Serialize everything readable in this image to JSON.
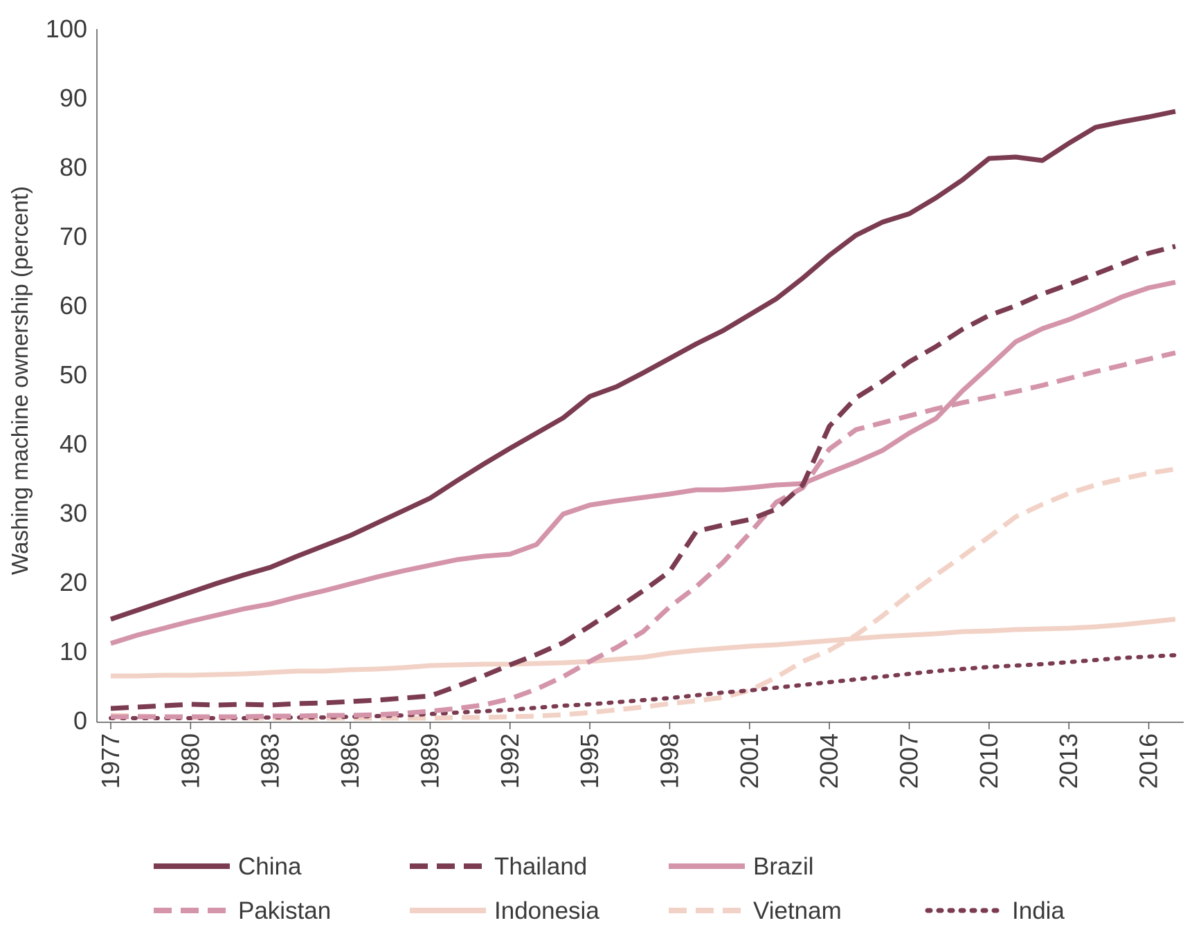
{
  "chart_data": {
    "type": "line",
    "title": "",
    "xlabel": "",
    "ylabel": "Washing machine ownership (percent)",
    "ylim": [
      0,
      100
    ],
    "yticks": [
      0,
      10,
      20,
      30,
      40,
      50,
      60,
      70,
      80,
      90,
      100
    ],
    "xlim": [
      1977,
      2017
    ],
    "xtick_labels": [
      "1977",
      "1980",
      "1983",
      "1986",
      "1989",
      "1992",
      "1995",
      "1998",
      "2001",
      "2004",
      "2007",
      "2010",
      "2013",
      "2016"
    ],
    "x": [
      1977,
      1978,
      1979,
      1980,
      1981,
      1982,
      1983,
      1984,
      1985,
      1986,
      1987,
      1988,
      1989,
      1990,
      1991,
      1992,
      1993,
      1994,
      1995,
      1996,
      1997,
      1998,
      1999,
      2000,
      2001,
      2002,
      2003,
      2004,
      2005,
      2006,
      2007,
      2008,
      2009,
      2010,
      2011,
      2012,
      2013,
      2014,
      2015,
      2016,
      2017
    ],
    "legend_position": "bottom",
    "series": [
      {
        "name": "China",
        "color": "#7b3b50",
        "style": "solid",
        "values": [
          14.7,
          16.0,
          17.3,
          18.6,
          19.9,
          21.1,
          22.2,
          23.8,
          25.3,
          26.8,
          28.6,
          30.4,
          32.2,
          34.7,
          37.1,
          39.4,
          41.6,
          43.8,
          46.9,
          48.3,
          50.3,
          52.4,
          54.5,
          56.4,
          58.7,
          61.0,
          64.0,
          67.3,
          70.2,
          72.1,
          73.3,
          75.6,
          78.2,
          81.3,
          81.5,
          81.0,
          83.5,
          85.8,
          86.6,
          87.3,
          88.1
        ]
      },
      {
        "name": "Thailand",
        "color": "#7b3b50",
        "style": "dashed",
        "values": [
          1.8,
          2.0,
          2.2,
          2.4,
          2.3,
          2.4,
          2.3,
          2.5,
          2.6,
          2.8,
          3.0,
          3.3,
          3.6,
          5.0,
          6.5,
          8.1,
          9.6,
          11.3,
          13.7,
          16.2,
          18.8,
          21.6,
          27.4,
          28.3,
          29.1,
          30.6,
          34.1,
          42.6,
          46.7,
          49.1,
          51.9,
          54.1,
          56.6,
          58.6,
          60.0,
          61.7,
          63.1,
          64.6,
          66.1,
          67.6,
          68.6
        ]
      },
      {
        "name": "Brazil",
        "color": "#d494a9",
        "style": "solid",
        "values": [
          11.2,
          12.4,
          13.4,
          14.4,
          15.3,
          16.2,
          16.9,
          17.9,
          18.8,
          19.8,
          20.8,
          21.7,
          22.5,
          23.3,
          23.8,
          24.1,
          25.5,
          29.9,
          31.2,
          31.8,
          32.3,
          32.8,
          33.4,
          33.4,
          33.7,
          34.1,
          34.3,
          35.9,
          37.4,
          39.1,
          41.6,
          43.7,
          47.7,
          51.2,
          54.8,
          56.7,
          58.0,
          59.6,
          61.3,
          62.6,
          63.4
        ]
      },
      {
        "name": "Pakistan",
        "color": "#d494a9",
        "style": "dashed",
        "values": [
          0.6,
          0.6,
          0.6,
          0.6,
          0.6,
          0.6,
          0.7,
          0.7,
          0.8,
          0.8,
          0.9,
          1.1,
          1.4,
          1.8,
          2.3,
          3.2,
          4.6,
          6.4,
          8.6,
          10.6,
          12.9,
          16.5,
          19.4,
          22.9,
          27.1,
          31.6,
          33.7,
          39.3,
          42.1,
          43.1,
          44.1,
          45.1,
          46.0,
          46.8,
          47.6,
          48.5,
          49.5,
          50.5,
          51.4,
          52.3,
          53.2
        ]
      },
      {
        "name": "Indonesia",
        "color": "#f2d2c6",
        "style": "solid",
        "values": [
          6.5,
          6.5,
          6.6,
          6.6,
          6.7,
          6.8,
          7.0,
          7.2,
          7.2,
          7.4,
          7.5,
          7.7,
          8.0,
          8.1,
          8.2,
          8.2,
          8.3,
          8.4,
          8.6,
          8.9,
          9.2,
          9.8,
          10.2,
          10.5,
          10.8,
          11.0,
          11.3,
          11.6,
          11.9,
          12.2,
          12.4,
          12.6,
          12.9,
          13.0,
          13.2,
          13.3,
          13.4,
          13.6,
          13.9,
          14.3,
          14.7
        ]
      },
      {
        "name": "Vietnam",
        "color": "#f2d2c6",
        "style": "dashed",
        "values": [
          0.8,
          0.7,
          0.6,
          0.5,
          0.5,
          0.4,
          0.4,
          0.4,
          0.4,
          0.4,
          0.4,
          0.4,
          0.4,
          0.5,
          0.5,
          0.6,
          0.7,
          0.9,
          1.2,
          1.6,
          2.0,
          2.5,
          2.9,
          3.4,
          4.4,
          6.3,
          8.6,
          10.2,
          12.4,
          15.2,
          18.3,
          21.1,
          23.8,
          26.6,
          29.5,
          31.3,
          32.9,
          34.1,
          35.0,
          35.8,
          36.4
        ]
      },
      {
        "name": "India",
        "color": "#7b3b50",
        "style": "dotted",
        "values": [
          0.4,
          0.4,
          0.4,
          0.4,
          0.4,
          0.4,
          0.5,
          0.5,
          0.5,
          0.6,
          0.7,
          0.8,
          1.0,
          1.2,
          1.4,
          1.6,
          1.9,
          2.2,
          2.4,
          2.7,
          3.0,
          3.3,
          3.7,
          4.1,
          4.4,
          4.8,
          5.2,
          5.6,
          6.0,
          6.4,
          6.8,
          7.2,
          7.5,
          7.8,
          8.0,
          8.2,
          8.5,
          8.8,
          9.1,
          9.3,
          9.5
        ]
      }
    ],
    "legend_rows": [
      [
        "China",
        "Thailand",
        "Brazil"
      ],
      [
        "Pakistan",
        "Indonesia",
        "Vietnam",
        "India"
      ]
    ]
  }
}
